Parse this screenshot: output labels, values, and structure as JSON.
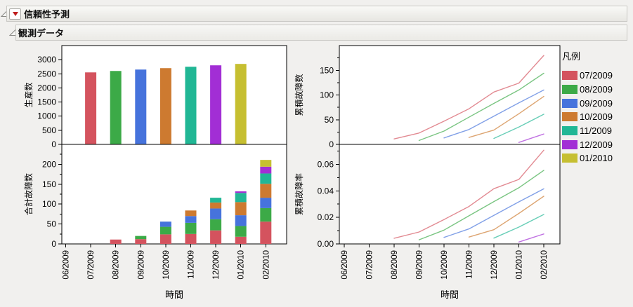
{
  "window": {
    "title": "信頼性予測",
    "subtitle": "観測データ"
  },
  "legend": {
    "title": "凡例",
    "entries": [
      {
        "label": "07/2009",
        "color": "#d4535e"
      },
      {
        "label": "08/2009",
        "color": "#3caa47"
      },
      {
        "label": "09/2009",
        "color": "#4673dc"
      },
      {
        "label": "10/2009",
        "color": "#cd7a30"
      },
      {
        "label": "11/2009",
        "color": "#21b795"
      },
      {
        "label": "12/2009",
        "color": "#a22ed5"
      },
      {
        "label": "01/2010",
        "color": "#c6bf31"
      }
    ]
  },
  "time_axis": {
    "label": "時間",
    "categories": [
      "06/2009",
      "07/2009",
      "08/2009",
      "09/2009",
      "10/2009",
      "11/2009",
      "12/2009",
      "01/2010",
      "02/2010"
    ]
  },
  "chart_data": [
    {
      "id": "production",
      "type": "bar",
      "position": "top-left",
      "ylabel": "生産数",
      "xlabel": "",
      "categories": [
        "06/2009",
        "07/2009",
        "08/2009",
        "09/2009",
        "10/2009",
        "11/2009",
        "12/2009",
        "01/2010",
        "02/2010"
      ],
      "bars": [
        {
          "month": "07/2009",
          "value": 2550
        },
        {
          "month": "08/2009",
          "value": 2600
        },
        {
          "month": "09/2009",
          "value": 2650
        },
        {
          "month": "10/2009",
          "value": 2700
        },
        {
          "month": "11/2009",
          "value": 2750
        },
        {
          "month": "12/2009",
          "value": 2800
        },
        {
          "month": "01/2010",
          "value": 2850
        }
      ],
      "ylim": [
        0,
        3500
      ],
      "yticks": [
        0,
        500,
        1000,
        1500,
        2000,
        2500,
        3000
      ],
      "ytick_labels": [
        "0",
        "500",
        "1000",
        "1500",
        "2000",
        "2500",
        "3000"
      ],
      "yticks_minor": [],
      "grid": false
    },
    {
      "id": "total-failures",
      "type": "stacked-bar",
      "position": "bottom-left",
      "ylabel": "合計故障数",
      "xlabel": "時間",
      "categories": [
        "06/2009",
        "07/2009",
        "08/2009",
        "09/2009",
        "10/2009",
        "11/2009",
        "12/2009",
        "01/2010",
        "02/2010"
      ],
      "series": [
        {
          "name": "07/2009",
          "values": [
            null,
            null,
            11,
            12,
            24,
            25,
            34,
            18,
            56
          ]
        },
        {
          "name": "08/2009",
          "values": [
            null,
            null,
            null,
            8,
            19,
            28,
            28,
            27,
            34
          ]
        },
        {
          "name": "09/2009",
          "values": [
            null,
            null,
            null,
            null,
            13,
            17,
            27,
            27,
            26
          ]
        },
        {
          "name": "10/2009",
          "values": [
            null,
            null,
            null,
            null,
            null,
            14,
            15,
            33,
            35
          ]
        },
        {
          "name": "11/2009",
          "values": [
            null,
            null,
            null,
            null,
            null,
            null,
            12,
            23,
            26
          ]
        },
        {
          "name": "12/2009",
          "values": [
            null,
            null,
            null,
            null,
            null,
            null,
            null,
            4,
            17
          ]
        },
        {
          "name": "01/2010",
          "values": [
            null,
            null,
            null,
            null,
            null,
            null,
            null,
            null,
            17
          ]
        }
      ],
      "ylim": [
        0,
        250
      ],
      "yticks": [
        0,
        50,
        100,
        150,
        200
      ],
      "ytick_labels": [
        "0",
        "50",
        "100",
        "150",
        "200"
      ],
      "yticks_minor": [
        25,
        75,
        125,
        175,
        225
      ],
      "grid": false
    },
    {
      "id": "cumulative-failures",
      "type": "line",
      "position": "top-right",
      "ylabel": "累積故障数",
      "xlabel": "",
      "categories": [
        "06/2009",
        "07/2009",
        "08/2009",
        "09/2009",
        "10/2009",
        "11/2009",
        "12/2009",
        "01/2010",
        "02/2010"
      ],
      "series": [
        {
          "name": "07/2009",
          "values": [
            null,
            null,
            11,
            23,
            47,
            72,
            106,
            124,
            180
          ]
        },
        {
          "name": "08/2009",
          "values": [
            null,
            null,
            null,
            8,
            27,
            55,
            83,
            110,
            144
          ]
        },
        {
          "name": "09/2009",
          "values": [
            null,
            null,
            null,
            null,
            13,
            30,
            57,
            84,
            110
          ]
        },
        {
          "name": "10/2009",
          "values": [
            null,
            null,
            null,
            null,
            null,
            14,
            29,
            62,
            97
          ]
        },
        {
          "name": "11/2009",
          "values": [
            null,
            null,
            null,
            null,
            null,
            null,
            12,
            35,
            61
          ]
        },
        {
          "name": "12/2009",
          "values": [
            null,
            null,
            null,
            null,
            null,
            null,
            null,
            4,
            21
          ]
        }
      ],
      "ylim": [
        0,
        200
      ],
      "yticks": [
        0,
        50,
        100,
        150
      ],
      "ytick_labels": [
        "0",
        "50",
        "100",
        "150"
      ],
      "yticks_minor": [
        25,
        75,
        125,
        175
      ],
      "grid": false
    },
    {
      "id": "cumulative-failure-rate",
      "type": "line",
      "position": "bottom-right",
      "ylabel": "累積故障率",
      "xlabel": "時間",
      "categories": [
        "06/2009",
        "07/2009",
        "08/2009",
        "09/2009",
        "10/2009",
        "11/2009",
        "12/2009",
        "01/2010",
        "02/2010"
      ],
      "series": [
        {
          "name": "07/2009",
          "values": [
            null,
            null,
            0.0043,
            0.009,
            0.0184,
            0.0282,
            0.0416,
            0.0486,
            0.0706
          ]
        },
        {
          "name": "08/2009",
          "values": [
            null,
            null,
            null,
            0.0031,
            0.0104,
            0.0212,
            0.0319,
            0.0423,
            0.0554
          ]
        },
        {
          "name": "09/2009",
          "values": [
            null,
            null,
            null,
            null,
            0.0049,
            0.0113,
            0.0215,
            0.0317,
            0.0415
          ]
        },
        {
          "name": "10/2009",
          "values": [
            null,
            null,
            null,
            null,
            null,
            0.0052,
            0.0107,
            0.023,
            0.0359
          ]
        },
        {
          "name": "11/2009",
          "values": [
            null,
            null,
            null,
            null,
            null,
            null,
            0.0044,
            0.0127,
            0.0222
          ]
        },
        {
          "name": "12/2009",
          "values": [
            null,
            null,
            null,
            null,
            null,
            null,
            null,
            0.0014,
            0.0075
          ]
        }
      ],
      "ylim": [
        0,
        0.075
      ],
      "yticks": [
        0,
        0.02,
        0.04,
        0.06
      ],
      "ytick_labels": [
        "0.00",
        "0.02",
        "0.04",
        "0.06"
      ],
      "yticks_minor": [
        0.01,
        0.03,
        0.05,
        0.07
      ],
      "grid": false
    }
  ]
}
